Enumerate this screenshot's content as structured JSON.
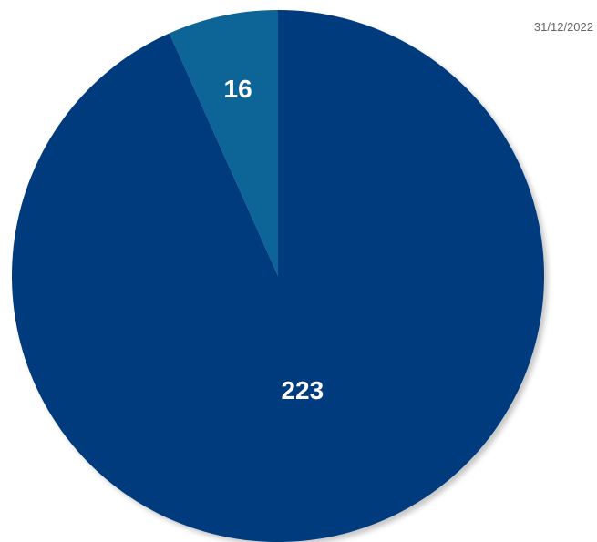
{
  "date": "31/12/2022",
  "colors": {
    "primary": "#013A7E",
    "secondary": "#0E6597",
    "label": "#FFFFFF"
  },
  "chart_data": {
    "type": "pie",
    "slices": [
      {
        "value": 223,
        "label": "223",
        "color": "#013A7E"
      },
      {
        "value": 16,
        "label": "16",
        "color": "#0E6597"
      }
    ],
    "start": "top",
    "direction": "clockwise",
    "legend": "none"
  }
}
